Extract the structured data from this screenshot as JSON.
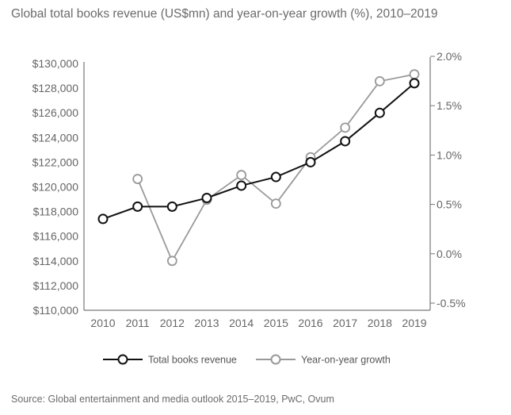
{
  "title": "Global total books revenue (US$mn) and year-on-year growth (%), 2010–2019",
  "source": "Source: Global entertainment and media outlook 2015–2019, PwC, Ovum",
  "chart_data": {
    "type": "line",
    "title": "Global total books revenue (US$mn) and year-on-year growth (%), 2010–2019",
    "x": [
      "2010",
      "2011",
      "2012",
      "2013",
      "2014",
      "2015",
      "2016",
      "2017",
      "2018",
      "2019"
    ],
    "y_left": {
      "range": [
        110000,
        130000
      ],
      "ticks": [
        110000,
        112000,
        114000,
        116000,
        118000,
        120000,
        122000,
        124000,
        126000,
        128000,
        130000
      ],
      "tick_labels": [
        "$110,000",
        "$112,000",
        "$114,000",
        "$116,000",
        "$118,000",
        "$120,000",
        "$122,000",
        "$124,000",
        "$126,000",
        "$128,000",
        "$130,000"
      ]
    },
    "y_right": {
      "range": [
        -0.5,
        2.0
      ],
      "ticks": [
        -0.5,
        0.0,
        0.5,
        1.0,
        1.5,
        2.0
      ],
      "tick_labels": [
        "-0.5%",
        "0.0%",
        "0.5%",
        "1.0%",
        "1.5%",
        "2.0%"
      ]
    },
    "series": [
      {
        "name": "Total books revenue",
        "axis": "left",
        "color": "#111111",
        "values": [
          117400,
          118400,
          118400,
          119100,
          120100,
          120800,
          122000,
          123700,
          126000,
          128400
        ]
      },
      {
        "name": "Year-on-year growth",
        "axis": "right",
        "color": "#999999",
        "values": [
          null,
          0.83,
          0.0,
          0.62,
          0.87,
          0.58,
          1.05,
          1.35,
          1.82,
          1.89
        ]
      }
    ],
    "grid": false,
    "legend": "bottom"
  }
}
